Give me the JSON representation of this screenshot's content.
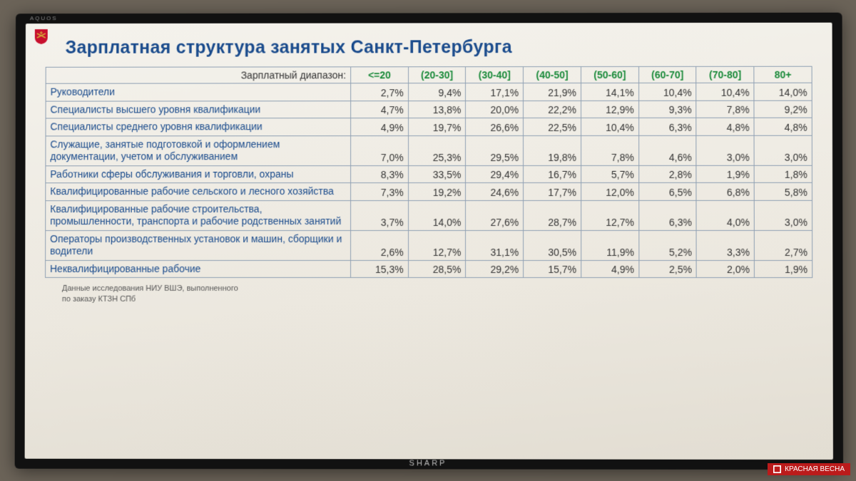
{
  "tv": {
    "brand": "SHARP",
    "model": "AQUOS"
  },
  "logo": {
    "shield_color": "#c8102e",
    "symbol_color": "#d4af37"
  },
  "title": "Зарплатная структура занятых Санкт-Петербурга",
  "table": {
    "type": "table",
    "row_header_label": "Зарплатный диапазон:",
    "columns": [
      "<=20",
      "(20-30]",
      "(30-40]",
      "(40-50]",
      "(50-60]",
      "(60-70]",
      "(70-80]",
      "80+"
    ],
    "header_color": "#1a8a3a",
    "rowlabel_color": "#1a4b8c",
    "cell_color": "#333333",
    "border_color": "#8fa0b3",
    "font_size": 14,
    "rows": [
      {
        "label": "Руководители",
        "cells": [
          "2,7%",
          "9,4%",
          "17,1%",
          "21,9%",
          "14,1%",
          "10,4%",
          "10,4%",
          "14,0%"
        ]
      },
      {
        "label": "Специалисты высшего уровня  квалификации",
        "cells": [
          "4,7%",
          "13,8%",
          "20,0%",
          "22,2%",
          "12,9%",
          "9,3%",
          "7,8%",
          "9,2%"
        ]
      },
      {
        "label": "Специалисты среднего уровня квалификации",
        "cells": [
          "4,9%",
          "19,7%",
          "26,6%",
          "22,5%",
          "10,4%",
          "6,3%",
          "4,8%",
          "4,8%"
        ]
      },
      {
        "label": "Служащие, занятые подготовкой и оформлением документации, учетом и обслуживанием",
        "cells": [
          "7,0%",
          "25,3%",
          "29,5%",
          "19,8%",
          "7,8%",
          "4,6%",
          "3,0%",
          "3,0%"
        ]
      },
      {
        "label": "Работники сферы обслуживания и торговли, охраны",
        "cells": [
          "8,3%",
          "33,5%",
          "29,4%",
          "16,7%",
          "5,7%",
          "2,8%",
          "1,9%",
          "1,8%"
        ]
      },
      {
        "label": "Квалифицированные рабочие сельского и лесного хозяйства",
        "cells": [
          "7,3%",
          "19,2%",
          "24,6%",
          "17,7%",
          "12,0%",
          "6,5%",
          "6,8%",
          "5,8%"
        ]
      },
      {
        "label": "Квалифицированные рабочие строительства, промышленности, транспорта и рабочие родственных занятий",
        "cells": [
          "3,7%",
          "14,0%",
          "27,6%",
          "28,7%",
          "12,7%",
          "6,3%",
          "4,0%",
          "3,0%"
        ]
      },
      {
        "label": "Операторы производственных установок и машин, сборщики и водители",
        "cells": [
          "2,6%",
          "12,7%",
          "31,1%",
          "30,5%",
          "11,9%",
          "5,2%",
          "3,3%",
          "2,7%"
        ]
      },
      {
        "label": "Неквалифицированные рабочие",
        "cells": [
          "15,3%",
          "28,5%",
          "29,2%",
          "15,7%",
          "4,9%",
          "2,5%",
          "2,0%",
          "1,9%"
        ]
      }
    ]
  },
  "source": {
    "line1": "Данные исследования НИУ ВШЭ, выполненного",
    "line2": "по заказу КТЗН СПб"
  },
  "watermark": {
    "text": "КРАСНАЯ ВЕСНА",
    "bg": "#bb1b1b"
  }
}
